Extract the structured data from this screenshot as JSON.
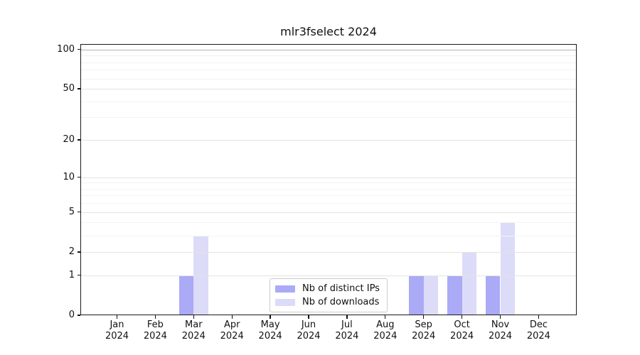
{
  "title": "mlr3fselect 2024",
  "legend": {
    "items": [
      {
        "label": "Nb of distinct IPs",
        "color": "#aaaaf6"
      },
      {
        "label": "Nb of downloads",
        "color": "#dcdcf8"
      }
    ]
  },
  "chart_data": {
    "type": "bar",
    "title": "mlr3fselect 2024",
    "categories": [
      "Jan 2024",
      "Feb 2024",
      "Mar 2024",
      "Apr 2024",
      "May 2024",
      "Jun 2024",
      "Jul 2024",
      "Aug 2024",
      "Sep 2024",
      "Oct 2024",
      "Nov 2024",
      "Dec 2024"
    ],
    "x_month_labels": [
      "Jan",
      "Feb",
      "Mar",
      "Apr",
      "May",
      "Jun",
      "Jul",
      "Aug",
      "Sep",
      "Oct",
      "Nov",
      "Dec"
    ],
    "x_year_label": "2024",
    "series": [
      {
        "name": "Nb of distinct IPs",
        "color": "#aaaaf6",
        "values": [
          0,
          0,
          1,
          0,
          0,
          0,
          0,
          0,
          1,
          1,
          1,
          0
        ]
      },
      {
        "name": "Nb of downloads",
        "color": "#dcdcf8",
        "values": [
          0,
          0,
          3,
          0,
          0,
          0,
          0,
          0,
          1,
          2,
          4,
          0
        ]
      }
    ],
    "xlabel": "",
    "ylabel": "",
    "y_scale": "log1p",
    "y_ticks_major": [
      0,
      1,
      2,
      5,
      10,
      20,
      50,
      100
    ],
    "y_ticks_minor": [
      3,
      4,
      6,
      7,
      8,
      9,
      30,
      40,
      60,
      70,
      80,
      90
    ],
    "ylim": [
      0,
      111
    ],
    "grid": true,
    "legend_position": "lower center",
    "colors": {
      "grid_major": "#e3e3e3",
      "grid_minor": "#f3f3f3",
      "grid_hundred": "#b5b5b5",
      "spine": "#1a1a1a",
      "text": "#111111"
    }
  }
}
